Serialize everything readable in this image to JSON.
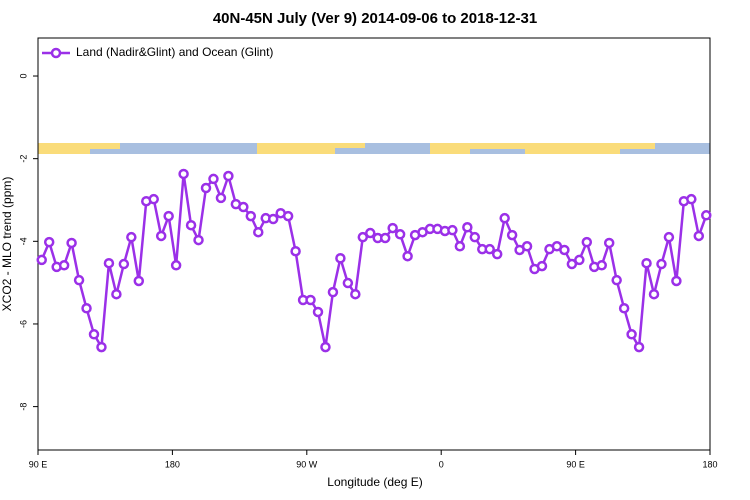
{
  "chart_data": {
    "type": "line",
    "title": "40N-45N July (Ver 9)   2014-09-06 to 2018-12-31",
    "x_label": "Longitude (deg E)",
    "y_label": "XCO2 - MLO trend (ppm)",
    "x": [
      92.5,
      97.5,
      102.5,
      107.5,
      112.5,
      117.5,
      122.5,
      127.5,
      132.5,
      137.5,
      142.5,
      147.5,
      152.5,
      157.5,
      162.5,
      167.5,
      172.5,
      177.5,
      182.5,
      187.5,
      192.5,
      197.5,
      202.5,
      207.5,
      212.5,
      217.5,
      222.5,
      227.5,
      232.5,
      237.5,
      242.5,
      247.5,
      252.5,
      257.5,
      262.5,
      267.5,
      272.5,
      277.5,
      282.5,
      287.5,
      292.5,
      297.5,
      302.5,
      307.5,
      312.5,
      317.5,
      322.5,
      327.5,
      332.5,
      337.5,
      342.5,
      347.5,
      352.5,
      357.5,
      362.5,
      367.5,
      372.5,
      377.5,
      382.5,
      387.5,
      392.5,
      397.5,
      402.5,
      407.5,
      412.5,
      417.5,
      422.5,
      427.5,
      432.5,
      437.5,
      442.5,
      447.5,
      452.5,
      457.5,
      462.5,
      467.5,
      472.5,
      477.5,
      482.5,
      487.5,
      492.5,
      497.5,
      502.5,
      507.5,
      512.5,
      517.5,
      522.5,
      527.5,
      532.5,
      537.5
    ],
    "series": [
      {
        "name": "Land (Nadir&Glint) and Ocean (Glint)",
        "color": "#9b30e8",
        "values": [
          -4.45,
          -4.02,
          -4.62,
          -4.58,
          -4.04,
          -4.94,
          -5.62,
          -6.25,
          -6.56,
          -4.53,
          -5.28,
          -4.55,
          -3.9,
          -4.96,
          -3.03,
          -2.98,
          -3.87,
          -3.39,
          -4.58,
          -2.37,
          -3.61,
          -3.97,
          -2.71,
          -2.49,
          -2.95,
          -2.42,
          -3.1,
          -3.17,
          -3.39,
          -3.78,
          -3.44,
          -3.46,
          -3.32,
          -3.39,
          -4.24,
          -5.42,
          -5.42,
          -5.71,
          -6.56,
          -5.23,
          -4.41,
          -5.01,
          -5.28,
          -3.9,
          -3.8,
          -3.92,
          -3.92,
          -3.68,
          -3.83,
          -4.36,
          -3.85,
          -3.78,
          -3.7,
          -3.7,
          -3.75,
          -3.73,
          -4.12,
          -3.66,
          -3.9,
          -4.19,
          -4.19,
          -4.31,
          -3.44,
          -3.85,
          -4.21,
          -4.12,
          -4.67,
          -4.6,
          -4.19,
          -4.12,
          -4.21,
          -4.55,
          -4.45,
          -4.02,
          -4.62,
          -4.58,
          -4.04,
          -4.94,
          -5.62,
          -6.25,
          -6.56,
          -4.53,
          -5.28,
          -4.55,
          -3.9,
          -4.96,
          -3.03,
          -2.98,
          -3.87,
          -3.37
        ]
      }
    ],
    "xlim": [
      90,
      540
    ],
    "xticks": [
      {
        "value": 90,
        "label": "90 E"
      },
      180,
      {
        "value": 270,
        "label": "90 W"
      },
      {
        "value": 360,
        "label": "0"
      },
      {
        "value": 450,
        "label": "90 E"
      },
      {
        "value": 540,
        "label": "180"
      }
    ],
    "ylim": [
      -9.05,
      0.92
    ],
    "yticks": [
      0,
      -2,
      -4,
      -6,
      -8
    ],
    "legend": "top-left"
  }
}
